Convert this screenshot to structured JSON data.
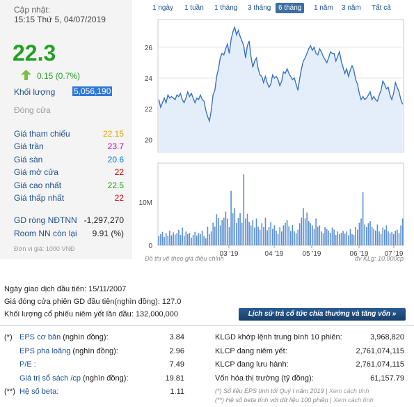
{
  "header": {
    "update_label": "Cập nhật:",
    "update_time": "15:15 Thứ 5, 04/07/2019",
    "price": "22.3",
    "change": "0.15 (0.7%)",
    "volume_label": "Khối lượng",
    "volume": "5,056,190",
    "status": "Đóng cửa"
  },
  "prices": [
    {
      "label": "Giá tham chiếu",
      "value": "22.15",
      "color": "#e0a000"
    },
    {
      "label": "Giá trần",
      "value": "23.7",
      "color": "#cc00cc"
    },
    {
      "label": "Giá sàn",
      "value": "20.6",
      "color": "#0077cc"
    },
    {
      "label": "Giá mở cửa",
      "value": "22",
      "color": "#cc0000"
    },
    {
      "label": "Giá cao nhất",
      "value": "22.5",
      "color": "#22a022"
    },
    {
      "label": "Giá thấp nhất",
      "value": "22",
      "color": "#cc0000"
    }
  ],
  "foreign": [
    {
      "label": "GD ròng NĐTNN",
      "value": "-1,297,270"
    },
    {
      "label": "Room NN còn lại",
      "value": "9.91 (%)"
    }
  ],
  "unit_note": "Đơn vị giá: 1000 VNĐ",
  "tabs": [
    "1 ngày",
    "1 tuần",
    "1 tháng",
    "3 tháng",
    "6 tháng",
    "1 năm",
    "3 năm",
    "Tất cả"
  ],
  "active_tab": "6 tháng",
  "chart_notes": {
    "left": "Đồ thị vẽ theo giá điều chỉnh",
    "right": "đv KLg: 10,000cp"
  },
  "info_lines": [
    "Ngày giao dịch đầu tiên: 15/11/2007",
    "Giá đóng cửa phiên GD đầu tiên(nghìn đồng): 127.0",
    "Khối lượng cổ phiếu niêm yết lần đầu: 132,000,000"
  ],
  "history_button": "Lịch sử trả cổ tức chia thưởng và tăng vốn »",
  "left_table": [
    {
      "mark": "(*)",
      "label": "EPS cơ bản",
      "unit": "(nghìn đồng):",
      "value": "3.84"
    },
    {
      "mark": "",
      "label": "EPS pha loãng",
      "unit": "(nghìn đồng):",
      "value": "2.96"
    },
    {
      "mark": "",
      "label": "P/E :",
      "unit": "",
      "value": "7.49"
    },
    {
      "mark": "",
      "label": "Giá trị sổ sách /cp",
      "unit": "(nghìn đồng):",
      "value": "19.81"
    },
    {
      "mark": "(**)",
      "label": "Hệ số beta:",
      "unit": "",
      "value": "1.11"
    }
  ],
  "right_table": [
    {
      "label": "KLGD khớp lệnh trung bình 10 phiên:",
      "value": "3,968,820"
    },
    {
      "label": "KLCP đang niêm yết:",
      "value": "2,761,074,115"
    },
    {
      "label": "KLCP đang lưu hành:",
      "value": "2,761,074,115"
    },
    {
      "label": "Vốn hóa thị trường",
      "unit": "(tỷ đồng):",
      "value": "61,157.79"
    }
  ],
  "footnotes": [
    {
      "text": "(*) Số liệu EPS tính tới Quý I năm 2019 | ",
      "link": "Xem cách tính"
    },
    {
      "text": "(**) Hệ số beta tính với dữ liệu 100 phiên | ",
      "link": "Xem cách tính"
    }
  ],
  "chart_data": {
    "type": "line",
    "price_axis": {
      "ticks": [
        20,
        22,
        24,
        26
      ],
      "ylim": [
        19.2,
        27.8
      ]
    },
    "volume_axis": {
      "ticks": [
        "0",
        "10M"
      ],
      "ylim": [
        0,
        19000000
      ]
    },
    "x_ticks": [
      "03 '19",
      "04 '19",
      "05 '19",
      "06 '19",
      "07 '19"
    ],
    "price_series": [
      22.6,
      22.1,
      22.4,
      22.7,
      22.4,
      22.9,
      22.7,
      22.8,
      22.7,
      22.6,
      22.9,
      22.8,
      23.0,
      22.6,
      22.4,
      22.7,
      23.1,
      22.8,
      23.0,
      22.7,
      22.4,
      22.7,
      22.6,
      22.9,
      22.6,
      22.5,
      21.9,
      21.5,
      21.2,
      21.9,
      22.9,
      23.2,
      24.1,
      24.6,
      25.3,
      25.6,
      25.5,
      25.9,
      26.2,
      25.6,
      26.5,
      27.0,
      27.3,
      26.8,
      27.1,
      26.7,
      26.4,
      26.1,
      25.3,
      26.1,
      26.4,
      25.4,
      24.7,
      25.1,
      25.3,
      24.6,
      24.2,
      24.1,
      23.7,
      24.1,
      23.7,
      23.4,
      23.6,
      24.2,
      24.0,
      24.1,
      23.9,
      23.5,
      23.8,
      24.4,
      24.3,
      24.6,
      24.3,
      24.1,
      23.9,
      24.0,
      23.6,
      23.2,
      24.0,
      24.6,
      25.1,
      25.3,
      25.6,
      25.9,
      26.1,
      25.8,
      26.0,
      25.6,
      25.5,
      25.9,
      25.7,
      25.4,
      25.2,
      25.0,
      25.3,
      25.7,
      25.6,
      25.6,
      25.1,
      25.4,
      25.7,
      25.1,
      24.7,
      24.3,
      24.6,
      24.1,
      24.5,
      24.8,
      24.5,
      23.9,
      23.6,
      23.0,
      22.6,
      22.8,
      22.6,
      22.7,
      22.9,
      23.1,
      22.6,
      22.8,
      22.6,
      22.5,
      22.9,
      23.2,
      23.8,
      23.6,
      23.3,
      23.4,
      22.9,
      22.6,
      23.0,
      23.7,
      23.4,
      23.1,
      22.6,
      22.3
    ],
    "volume_series": [
      2.1,
      2.6,
      3.1,
      1.9,
      2.8,
      2.2,
      3.4,
      2.3,
      3.0,
      2.5,
      2.8,
      3.6,
      2.4,
      4.1,
      2.2,
      3.2,
      2.6,
      2.9,
      1.8,
      2.4,
      3.1,
      2.2,
      2.8,
      2.6,
      3.4,
      2.2,
      1.6,
      4.3,
      2.6,
      3.2,
      5.2,
      4.3,
      7.2,
      6.3,
      4.6,
      5.8,
      6.4,
      7.8,
      6.2,
      4.2,
      12.6,
      7.4,
      8.6,
      5.2,
      6.3,
      7.4,
      5.2,
      16.4,
      6.2,
      7.3,
      5.4,
      4.6,
      5.8,
      4.1,
      6.2,
      4.3,
      3.6,
      5.1,
      4.2,
      6.4,
      3.5,
      4.2,
      5.4,
      3.8,
      4.6,
      3.4,
      2.6,
      4.2,
      3.2,
      4.6,
      5.2,
      5.8,
      4.4,
      3.3,
      4.7,
      3.2,
      2.8,
      3.6,
      5.1,
      6.4,
      8.6,
      6.2,
      7.6,
      5.6,
      5.1,
      4.6,
      3.8,
      6.2,
      4.3,
      4.6,
      3.2,
      2.8,
      4.2,
      3.8,
      3.4,
      2.9,
      4.1,
      3.6,
      2.4,
      3.2,
      2.6,
      2.9,
      3.3,
      2.7,
      3.2,
      2.3,
      3.8,
      2.6,
      2.4,
      4.2,
      3.6,
      5.2,
      6.2,
      12.3,
      4.8,
      4.2,
      5.1,
      5.6,
      4.2,
      3.8,
      3.4,
      4.8,
      3.2,
      2.6,
      4.1,
      3.6,
      4.6,
      3.2,
      2.8,
      3.1,
      2.6,
      3.4,
      3.6,
      2.8,
      4.6,
      6.2
    ]
  }
}
